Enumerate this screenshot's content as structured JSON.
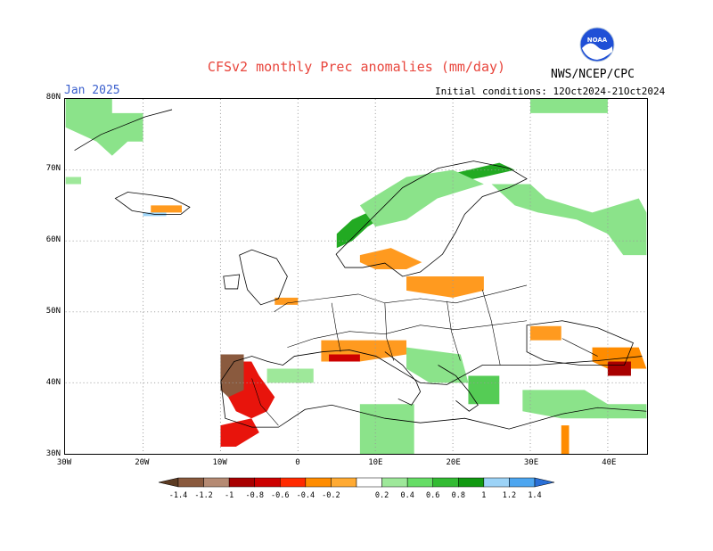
{
  "title": "CFSv2 monthly Prec anomalies (mm/day)",
  "subtitle_left": "Jan 2025",
  "subtitle_right": "Initial conditions: 12Oct2024-21Oct2024",
  "org_label": "NWS/NCEP/CPC",
  "logo_text": "NOAA",
  "map": {
    "lon_range": [
      -30,
      45
    ],
    "lat_range": [
      30,
      80
    ],
    "lat_ticks": [
      {
        "value": 80,
        "label": "80N"
      },
      {
        "value": 70,
        "label": "70N"
      },
      {
        "value": 60,
        "label": "60N"
      },
      {
        "value": 50,
        "label": "50N"
      },
      {
        "value": 40,
        "label": "40N"
      },
      {
        "value": 30,
        "label": "30N"
      }
    ],
    "lon_ticks": [
      {
        "value": -30,
        "label": "30W"
      },
      {
        "value": -20,
        "label": "20W"
      },
      {
        "value": -10,
        "label": "10W"
      },
      {
        "value": 0,
        "label": "0"
      },
      {
        "value": 10,
        "label": "10E"
      },
      {
        "value": 20,
        "label": "20E"
      },
      {
        "value": 30,
        "label": "30E"
      },
      {
        "value": 40,
        "label": "40E"
      }
    ],
    "grid": "dotted",
    "anomaly_regions": [
      {
        "name": "greenland-east",
        "category": 0.4,
        "polygon": [
          [
            -30,
            80
          ],
          [
            -24,
            80
          ],
          [
            -24,
            78
          ],
          [
            -20,
            78
          ],
          [
            -20,
            74
          ],
          [
            -22,
            74
          ],
          [
            -24,
            72
          ],
          [
            -26,
            74
          ],
          [
            -30,
            76
          ]
        ]
      },
      {
        "name": "greenland-tip",
        "category": 0.2,
        "polygon": [
          [
            -30,
            69
          ],
          [
            -28,
            69
          ],
          [
            -28,
            68
          ],
          [
            -30,
            68
          ]
        ]
      },
      {
        "name": "iceland-south",
        "category": -0.2,
        "polygon": [
          [
            -19,
            65
          ],
          [
            -15,
            65
          ],
          [
            -15,
            64
          ],
          [
            -19,
            64
          ]
        ]
      },
      {
        "name": "iceland-south-blue",
        "category": 1.0,
        "polygon": [
          [
            -20,
            64
          ],
          [
            -17,
            64
          ],
          [
            -17,
            63.5
          ],
          [
            -20,
            63.5
          ]
        ]
      },
      {
        "name": "norway-coast",
        "category": 0.8,
        "polygon": [
          [
            5,
            61
          ],
          [
            7,
            63
          ],
          [
            9,
            64
          ],
          [
            12,
            66
          ],
          [
            15,
            68
          ],
          [
            18,
            69
          ],
          [
            22,
            70
          ],
          [
            26,
            71
          ],
          [
            28,
            70
          ],
          [
            24,
            69
          ],
          [
            19,
            68
          ],
          [
            15,
            66
          ],
          [
            12,
            64
          ],
          [
            9,
            62
          ],
          [
            7,
            60
          ],
          [
            5,
            59
          ]
        ]
      },
      {
        "name": "scandinavia-inland",
        "category": 0.4,
        "polygon": [
          [
            8,
            65
          ],
          [
            14,
            69
          ],
          [
            20,
            70
          ],
          [
            24,
            68
          ],
          [
            18,
            66
          ],
          [
            14,
            63
          ],
          [
            10,
            62
          ]
        ]
      },
      {
        "name": "russia-nw",
        "category": 0.4,
        "polygon": [
          [
            25,
            68
          ],
          [
            30,
            68
          ],
          [
            32,
            66
          ],
          [
            38,
            64
          ],
          [
            44,
            66
          ],
          [
            45,
            64
          ],
          [
            45,
            58
          ],
          [
            42,
            58
          ],
          [
            40,
            61
          ],
          [
            36,
            63
          ],
          [
            31,
            64
          ],
          [
            28,
            65
          ]
        ]
      },
      {
        "name": "barents",
        "category": 0.4,
        "polygon": [
          [
            30,
            80
          ],
          [
            40,
            80
          ],
          [
            40,
            78
          ],
          [
            30,
            78
          ]
        ]
      },
      {
        "name": "denmark",
        "category": -0.2,
        "polygon": [
          [
            8,
            58
          ],
          [
            12,
            59
          ],
          [
            16,
            57
          ],
          [
            14,
            56
          ],
          [
            10,
            56
          ],
          [
            8,
            57
          ]
        ]
      },
      {
        "name": "poland",
        "category": -0.2,
        "polygon": [
          [
            14,
            55
          ],
          [
            24,
            55
          ],
          [
            24,
            53
          ],
          [
            20,
            52
          ],
          [
            14,
            53
          ]
        ]
      },
      {
        "name": "england",
        "category": -0.2,
        "polygon": [
          [
            -3,
            52
          ],
          [
            0,
            52
          ],
          [
            0,
            51
          ],
          [
            -3,
            51
          ]
        ]
      },
      {
        "name": "iberia-wet",
        "category": -0.6,
        "polygon": [
          [
            -9,
            43
          ],
          [
            -6,
            43
          ],
          [
            -5,
            41
          ],
          [
            -3,
            38
          ],
          [
            -4,
            36
          ],
          [
            -6,
            35
          ],
          [
            -8,
            36
          ],
          [
            -9,
            38
          ]
        ]
      },
      {
        "name": "iberia-dry",
        "category": -1.2,
        "polygon": [
          [
            -10,
            44
          ],
          [
            -7,
            44
          ],
          [
            -7,
            39
          ],
          [
            -9,
            38
          ],
          [
            -10,
            39
          ]
        ]
      },
      {
        "name": "morocco",
        "category": -0.6,
        "polygon": [
          [
            -10,
            34
          ],
          [
            -6,
            35
          ],
          [
            -5,
            33
          ],
          [
            -8,
            31
          ],
          [
            -10,
            31
          ]
        ]
      },
      {
        "name": "gulf-of-lion",
        "category": -0.2,
        "polygon": [
          [
            3,
            46
          ],
          [
            14,
            46
          ],
          [
            14,
            44
          ],
          [
            8,
            43
          ],
          [
            3,
            43
          ]
        ]
      },
      {
        "name": "cote-azur",
        "category": -0.8,
        "polygon": [
          [
            4,
            44
          ],
          [
            8,
            44
          ],
          [
            8,
            43
          ],
          [
            4,
            43
          ]
        ]
      },
      {
        "name": "adriatic",
        "category": 0.4,
        "polygon": [
          [
            14,
            45
          ],
          [
            21,
            44
          ],
          [
            22,
            40
          ],
          [
            17,
            40
          ],
          [
            14,
            42
          ]
        ]
      },
      {
        "name": "aegean",
        "category": 0.6,
        "polygon": [
          [
            22,
            41
          ],
          [
            26,
            41
          ],
          [
            26,
            37
          ],
          [
            22,
            37
          ]
        ]
      },
      {
        "name": "turkey-south",
        "category": 0.4,
        "polygon": [
          [
            29,
            39
          ],
          [
            37,
            39
          ],
          [
            40,
            37
          ],
          [
            45,
            37
          ],
          [
            45,
            35
          ],
          [
            34,
            35
          ],
          [
            29,
            36
          ]
        ]
      },
      {
        "name": "black-sea-east",
        "category": -0.4,
        "polygon": [
          [
            38,
            45
          ],
          [
            44,
            45
          ],
          [
            45,
            42
          ],
          [
            40,
            42
          ],
          [
            38,
            43
          ]
        ]
      },
      {
        "name": "caucasus",
        "category": -1.0,
        "polygon": [
          [
            40,
            43
          ],
          [
            43,
            43
          ],
          [
            43,
            41
          ],
          [
            40,
            41
          ]
        ]
      },
      {
        "name": "north-africa",
        "category": 0.4,
        "polygon": [
          [
            8,
            37
          ],
          [
            15,
            37
          ],
          [
            15,
            30
          ],
          [
            8,
            30
          ]
        ]
      },
      {
        "name": "ukraine-dry",
        "category": -0.2,
        "polygon": [
          [
            30,
            48
          ],
          [
            34,
            48
          ],
          [
            34,
            46
          ],
          [
            30,
            46
          ]
        ]
      },
      {
        "name": "france-west",
        "category": 0.2,
        "polygon": [
          [
            -4,
            42
          ],
          [
            2,
            42
          ],
          [
            2,
            40
          ],
          [
            -4,
            40
          ]
        ]
      },
      {
        "name": "nile-delta",
        "category": -0.4,
        "polygon": [
          [
            34,
            34
          ],
          [
            35,
            34
          ],
          [
            35,
            30
          ],
          [
            34,
            30
          ]
        ]
      }
    ]
  },
  "colorbar": {
    "colors": [
      "#5c3b22",
      "#8a5a3e",
      "#b58a73",
      "#a80000",
      "#cc0000",
      "#ff2a00",
      "#ff8c00",
      "#ffaa33",
      "#ffffff",
      "#9ee89a",
      "#66dd66",
      "#33bb33",
      "#119911",
      "#9cd3f7",
      "#4da6f0",
      "#2a6fd6"
    ],
    "labels": [
      "-1.4",
      "-1.2",
      "-1",
      "-0.8",
      "-0.6",
      "-0.4",
      "-0.2",
      "0.2",
      "0.4",
      "0.6",
      "0.8",
      "1",
      "1.2",
      "1.4"
    ]
  }
}
